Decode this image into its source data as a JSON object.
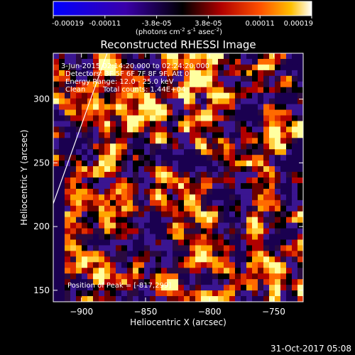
{
  "chart_data": {
    "type": "heatmap",
    "title": "Reconstructed RHESSI Image",
    "xlabel": "Heliocentric X (arcsec)",
    "ylabel": "Heliocentric Y (arcsec)",
    "xlim": [
      -922,
      -727
    ],
    "ylim": [
      141,
      336
    ],
    "xticks": [
      -900,
      -850,
      -800,
      -750
    ],
    "yticks": [
      150,
      200,
      250,
      300
    ],
    "colorbar": {
      "ticks": [
        "-0.00019",
        "-0.00011",
        "-3.8e-05",
        "3.8e-05",
        "0.00011",
        "0.00019"
      ],
      "unit_main": "(photons cm",
      "unit_sup1": "-2",
      "unit_mid1": " s",
      "unit_sup2": "-1",
      "unit_mid2": " asec",
      "unit_sup3": "-2",
      "unit_end": ")",
      "range": [
        -0.00019,
        0.00019
      ]
    },
    "annotations": {
      "time": "3-Jun-2015 02:14:20.000 to 02:24:20.000",
      "detectors": "Detectors: 3F 5F 6F 7F 8F 9F, Att 0",
      "energy": "Energy Range: 12.0 - 25.0 keV",
      "method": "Clean",
      "counts": "Total counts: 1.44E+04",
      "peak": "Position of Peak = [-817,299]"
    },
    "peak": [
      -817,
      299
    ],
    "limb_line": [
      [
        -922,
        218
      ],
      [
        -880,
        336
      ]
    ],
    "grid_cols": 44,
    "grid_rows": 44
  },
  "footer": {
    "timestamp": "31-Oct-2017 05:08"
  }
}
